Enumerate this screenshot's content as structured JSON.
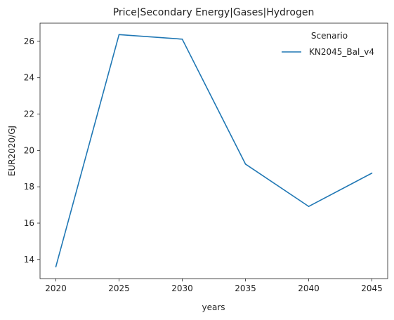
{
  "chart_data": {
    "type": "line",
    "title": "Price|Secondary Energy|Gases|Hydrogen",
    "xlabel": "years",
    "ylabel": "EUR2020/GJ",
    "x": [
      2020,
      2025,
      2030,
      2035,
      2040,
      2045
    ],
    "xticks": [
      "2020",
      "2025",
      "2030",
      "2035",
      "2040",
      "2045"
    ],
    "yticks": [
      "14",
      "16",
      "18",
      "20",
      "22",
      "24",
      "26"
    ],
    "xlim": [
      2018.75,
      2046.25
    ],
    "ylim": [
      12.95,
      27.0
    ],
    "grid": false,
    "legend": {
      "title": "Scenario",
      "placement": "top-right"
    },
    "series": [
      {
        "name": "KN2045_Bal_v4",
        "color": "#1f77b4",
        "values": [
          13.6,
          26.37,
          26.12,
          19.25,
          16.92,
          18.75
        ]
      }
    ]
  }
}
